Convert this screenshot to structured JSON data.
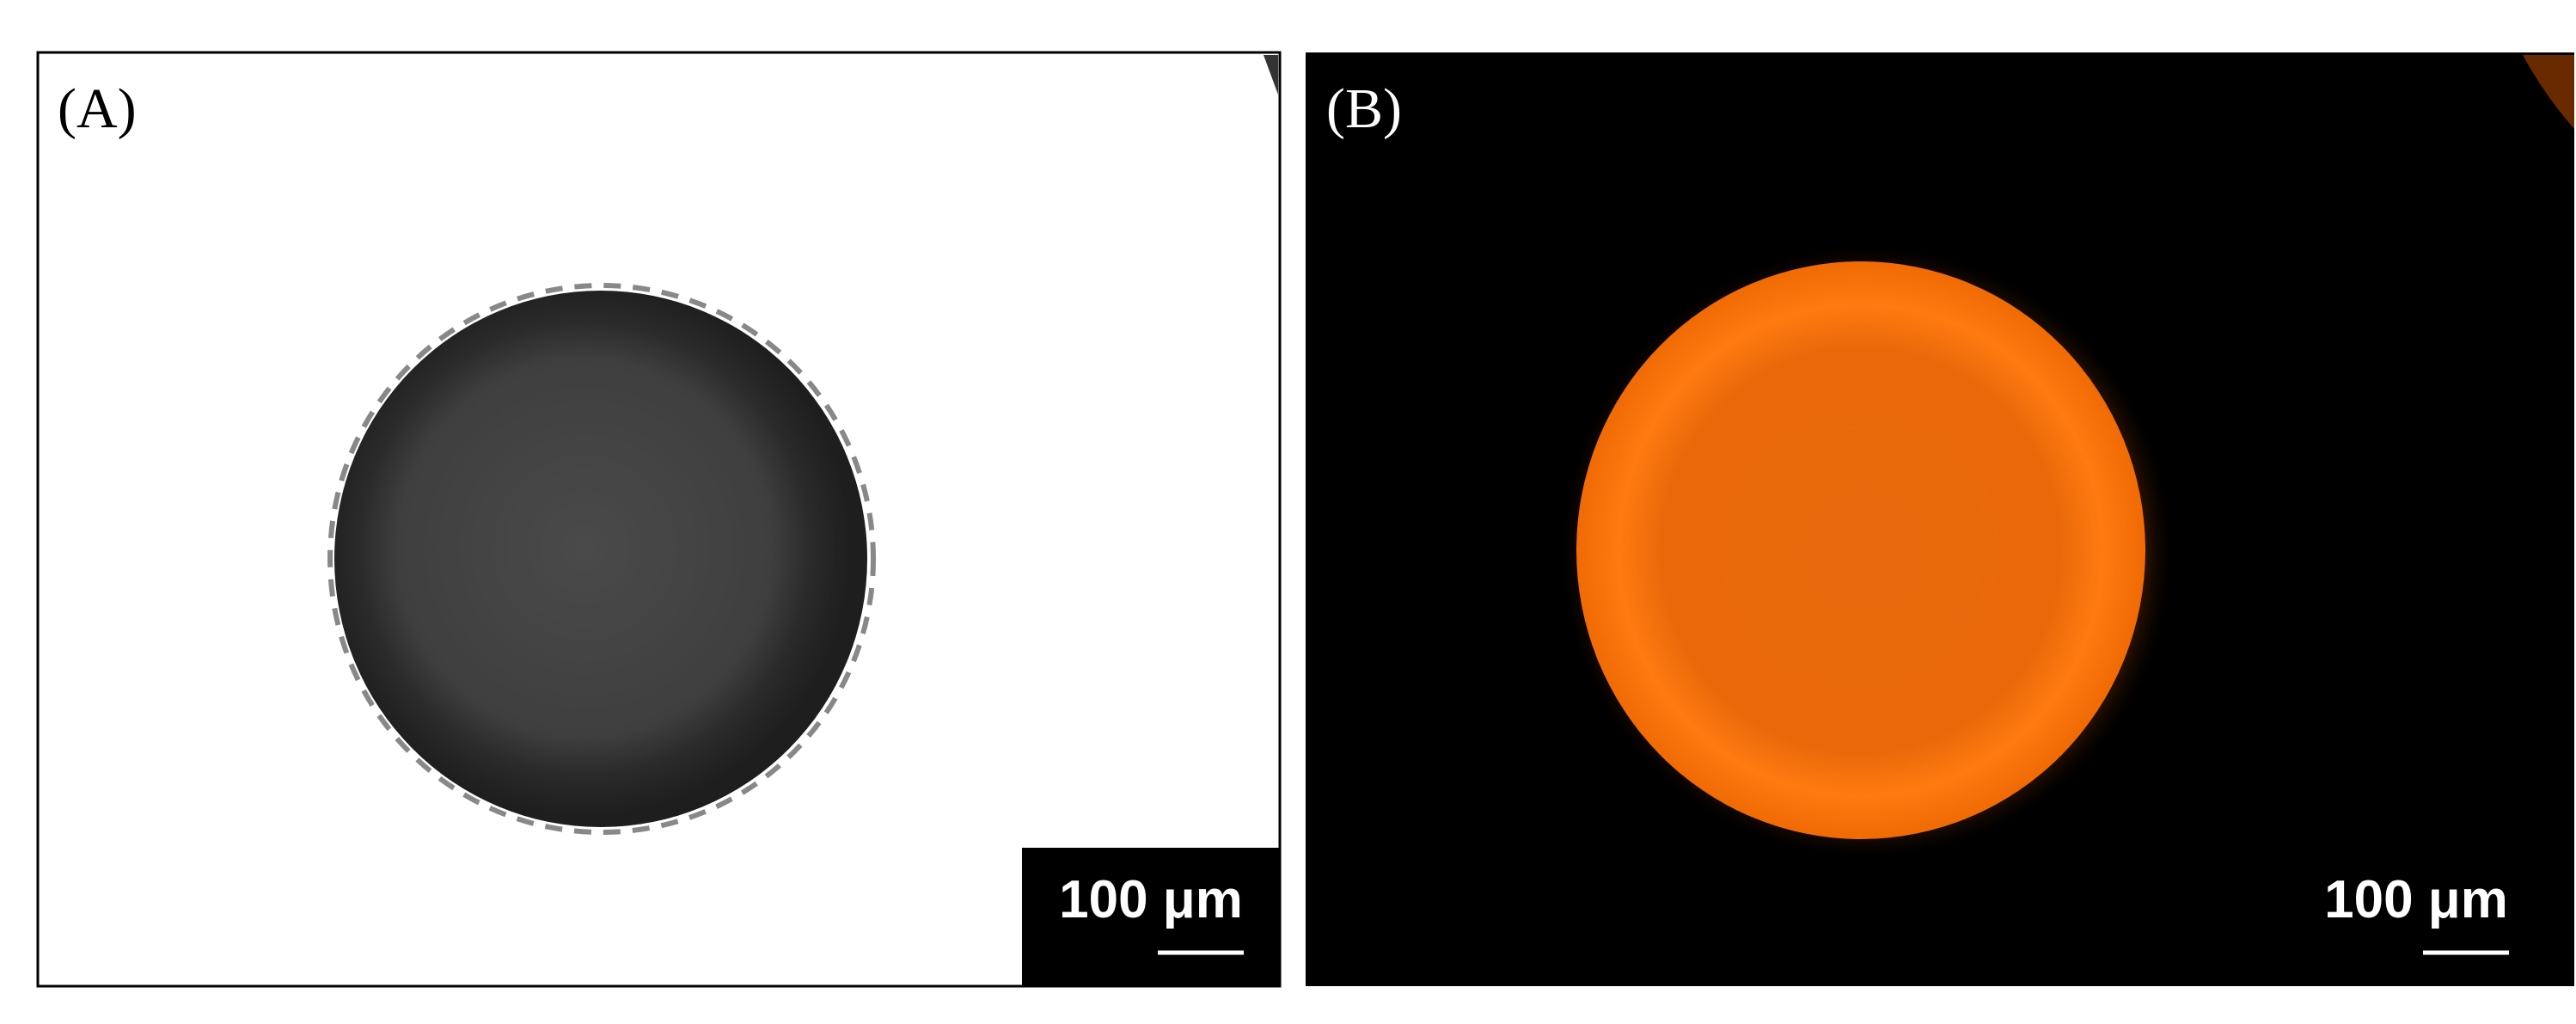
{
  "panels": [
    {
      "label": "(A)",
      "scale_bar": "100 μm"
    },
    {
      "label": "(B)",
      "scale_bar": "100 μm"
    }
  ]
}
